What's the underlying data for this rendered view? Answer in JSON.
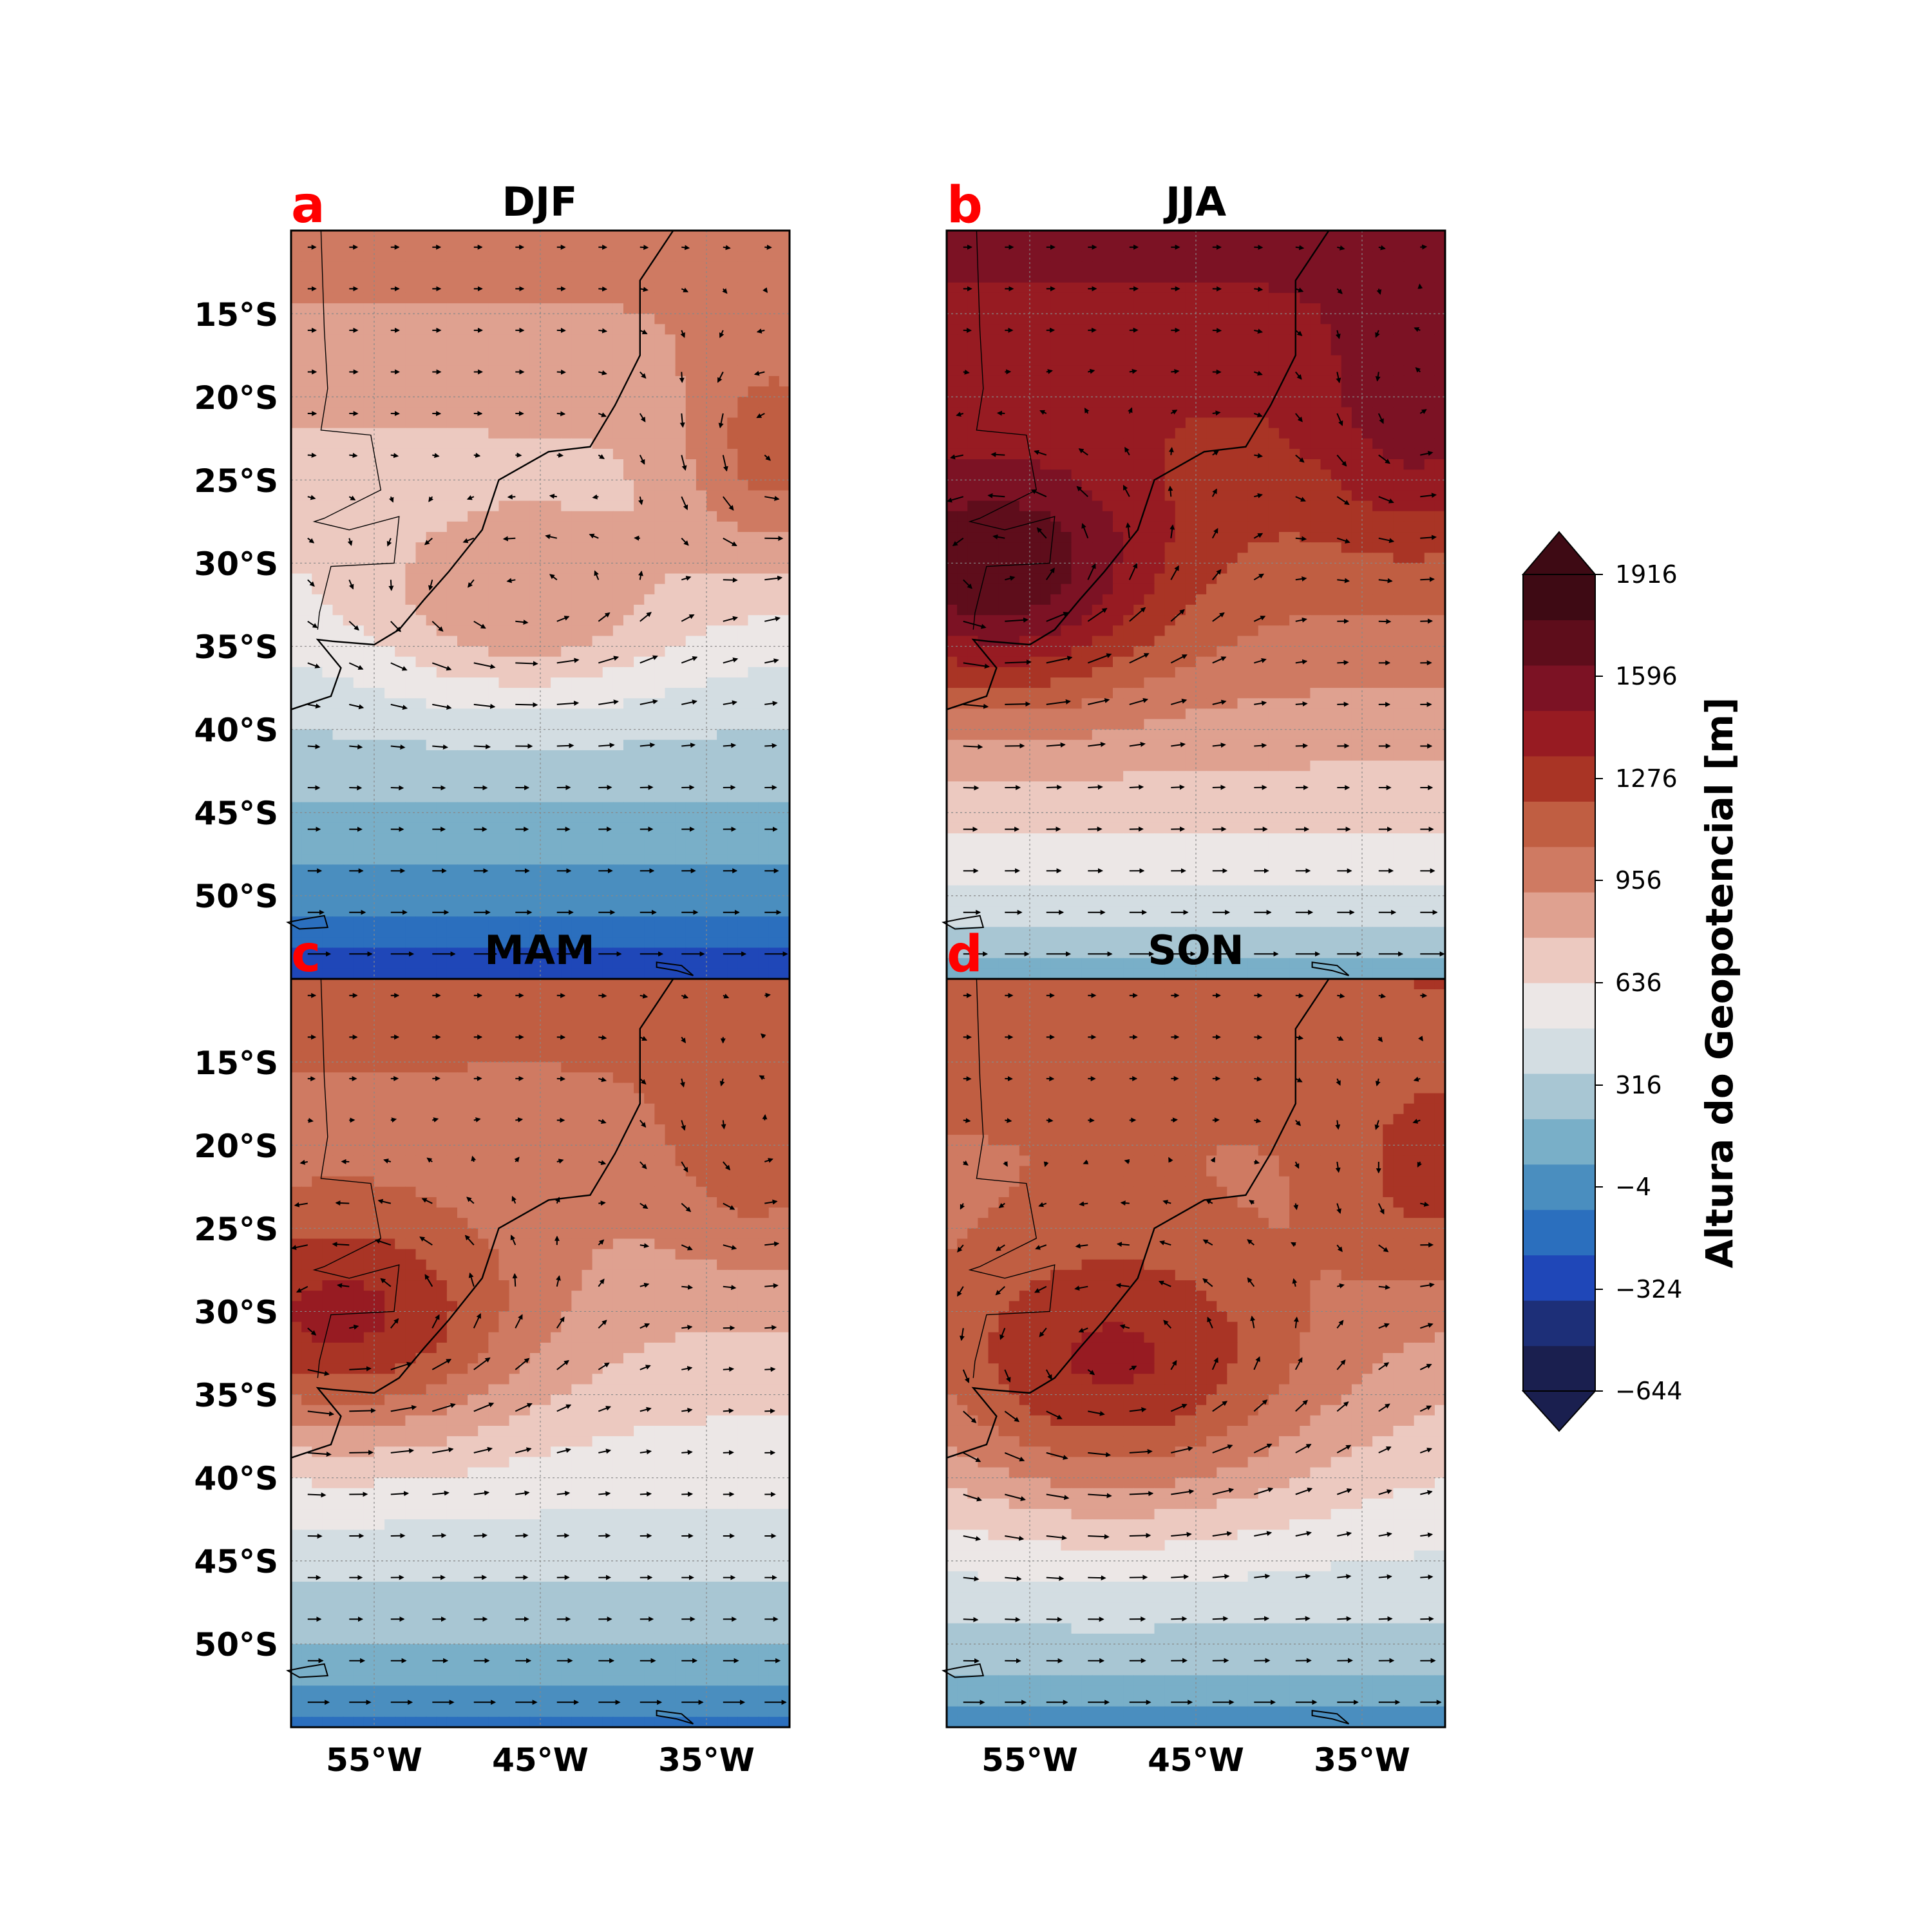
{
  "figure": {
    "colorbar": {
      "label": "Altura do Geopotencial [m]",
      "ticks": [
        "1916",
        "1596",
        "1276",
        "956",
        "636",
        "316",
        "−4",
        "−324",
        "−644"
      ],
      "ticks_values": [
        1916,
        1596,
        1276,
        956,
        636,
        316,
        -4,
        -324,
        -644
      ],
      "range": [
        -644,
        1916
      ],
      "colors": [
        "#1a1f4f",
        "#1d2f78",
        "#1f47b8",
        "#2b6fbe",
        "#4a8ebf",
        "#79afc8",
        "#a8c6d3",
        "#d3dde2",
        "#ece7e6",
        "#ecc9c0",
        "#dfa190",
        "#cf7a62",
        "#c05e42",
        "#a93425",
        "#971b22",
        "#7c1224",
        "#5e0d1b",
        "#3e0a14"
      ]
    },
    "panels": [
      {
        "letter": "a",
        "title": "DJF",
        "letter_color": "#ff0000"
      },
      {
        "letter": "b",
        "title": "JJA",
        "letter_color": "#ff0000"
      },
      {
        "letter": "c",
        "title": "MAM",
        "letter_color": "#ff0000"
      },
      {
        "letter": "d",
        "title": "SON",
        "letter_color": "#ff0000"
      }
    ],
    "lat_ticks": [
      "15°S",
      "20°S",
      "25°S",
      "30°S",
      "35°S",
      "40°S",
      "45°S",
      "50°S"
    ],
    "lon_ticks": [
      "55°W",
      "45°W",
      "35°W"
    ]
  },
  "chart_data": {
    "type": "heatmap",
    "variable": "Altura do Geopotencial [m]",
    "extent": {
      "lon": [
        -60,
        -30
      ],
      "lat": [
        -55,
        -10
      ]
    },
    "lat_tick_values": [
      -15,
      -20,
      -25,
      -30,
      -35,
      -40,
      -45,
      -50
    ],
    "lon_tick_values": [
      -55,
      -45,
      -35
    ],
    "vectors": true,
    "fields": [
      {
        "panel": "a",
        "season": "DJF",
        "base": {
          "north": 1000,
          "south": -450,
          "lat_south_deg": -55
        },
        "highs": [
          {
            "lon": -46,
            "lat": -33,
            "amp": 380,
            "sx": 7,
            "sy": 4
          },
          {
            "lon": -31,
            "lat": -24,
            "amp": 380,
            "sx": 4,
            "sy": 5
          }
        ]
      },
      {
        "panel": "b",
        "season": "JJA",
        "base": {
          "north": 1550,
          "south": 0,
          "lat_south_deg": -55
        },
        "highs": [
          {
            "lon": -57,
            "lat": -31,
            "amp": 650,
            "sx": 7,
            "sy": 5
          },
          {
            "lon": -32,
            "lat": -22,
            "amp": 250,
            "sx": 4,
            "sy": 5
          }
        ]
      },
      {
        "panel": "c",
        "season": "MAM",
        "base": {
          "north": 1150,
          "south": -200,
          "lat_south_deg": -55
        },
        "highs": [
          {
            "lon": -57,
            "lat": -31,
            "amp": 620,
            "sx": 8,
            "sy": 5
          },
          {
            "lon": -32,
            "lat": -21,
            "amp": 200,
            "sx": 4,
            "sy": 5
          }
        ]
      },
      {
        "panel": "d",
        "season": "SON",
        "base": {
          "north": 1200,
          "south": -100,
          "lat_south_deg": -55
        },
        "highs": [
          {
            "lon": -50,
            "lat": -34,
            "amp": 600,
            "sx": 9,
            "sy": 6
          },
          {
            "lon": -31,
            "lat": -23,
            "amp": 250,
            "sx": 4,
            "sy": 5
          }
        ]
      }
    ]
  }
}
